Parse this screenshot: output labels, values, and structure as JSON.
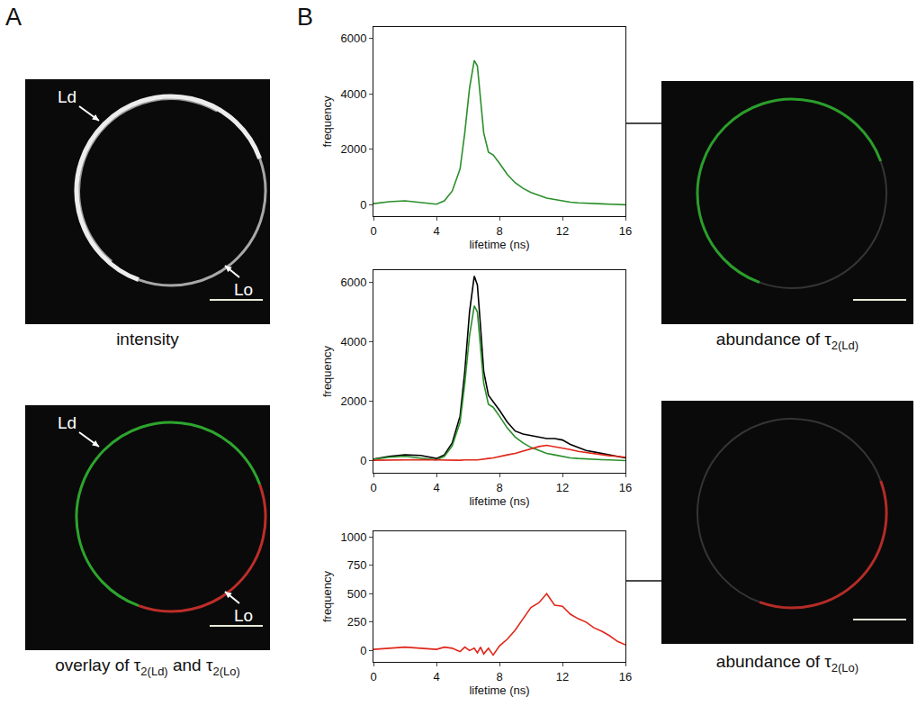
{
  "panel_letters": [
    "A",
    "B"
  ],
  "images": [
    {
      "type": "intensity",
      "labels": [
        "Ld",
        "Lo"
      ],
      "caption": [
        {
          "text": "intensity"
        }
      ]
    },
    {
      "type": "overlay",
      "labels": [
        "Ld",
        "Lo"
      ],
      "caption": [
        {
          "text": "overlay of τ"
        },
        {
          "sub": "2(Ld)"
        },
        {
          "text": " and τ"
        },
        {
          "sub": "2(Lo)"
        }
      ]
    },
    {
      "type": "Ld",
      "labels": [],
      "caption": [
        {
          "text": "abundance of τ"
        },
        {
          "sub": "2(Ld)"
        }
      ]
    },
    {
      "type": "Lo",
      "labels": [],
      "caption": [
        {
          "text": "abundance of τ"
        },
        {
          "sub": "2(Lo)"
        }
      ]
    }
  ],
  "chart_data": [
    {
      "type": "line",
      "xlabel": "lifetime (ns)",
      "ylabel": "frequency",
      "xlim": [
        0,
        16
      ],
      "xticks": [
        0,
        4,
        8,
        12,
        16
      ],
      "ylim": [
        -400,
        6400
      ],
      "yticks": [
        0,
        2000,
        4000,
        6000
      ],
      "x": [
        0,
        1,
        2,
        3,
        4,
        4.5,
        5,
        5.5,
        5.8,
        6.1,
        6.4,
        6.6,
        6.8,
        7.0,
        7.3,
        7.6,
        8,
        8.5,
        9,
        9.5,
        10,
        10.5,
        11,
        11.5,
        12,
        12.5,
        13,
        13.5,
        14,
        14.5,
        15,
        15.5,
        16
      ],
      "series": [
        {
          "color": "#2a8f2a",
          "values": [
            50,
            120,
            150,
            100,
            30,
            150,
            500,
            1300,
            2600,
            4200,
            5200,
            5000,
            3800,
            2600,
            1900,
            1800,
            1500,
            1100,
            800,
            600,
            450,
            350,
            250,
            200,
            150,
            100,
            80,
            60,
            50,
            40,
            30,
            20,
            10
          ]
        }
      ]
    },
    {
      "type": "line",
      "xlabel": "lifetime (ns)",
      "ylabel": "frequency",
      "xlim": [
        0,
        16
      ],
      "xticks": [
        0,
        4,
        8,
        12,
        16
      ],
      "ylim": [
        -400,
        6400
      ],
      "yticks": [
        0,
        2000,
        4000,
        6000
      ],
      "x": [
        0,
        1,
        2,
        3,
        4,
        4.5,
        5,
        5.5,
        5.8,
        6.1,
        6.4,
        6.6,
        6.8,
        7.0,
        7.3,
        7.6,
        8,
        8.5,
        9,
        9.5,
        10,
        10.5,
        11,
        11.5,
        12,
        12.5,
        13,
        13.5,
        14,
        14.5,
        15,
        15.5,
        16
      ],
      "series": [
        {
          "color": "#000000",
          "values": [
            60,
            150,
            200,
            180,
            80,
            200,
            600,
            1500,
            3000,
            5000,
            6200,
            5900,
            4500,
            3000,
            2200,
            2000,
            1700,
            1300,
            1000,
            900,
            850,
            800,
            750,
            750,
            700,
            550,
            450,
            350,
            300,
            250,
            200,
            150,
            100
          ]
        },
        {
          "color": "#2a8f2a",
          "values": [
            50,
            120,
            150,
            100,
            30,
            150,
            500,
            1300,
            2600,
            4200,
            5200,
            5000,
            3800,
            2600,
            1900,
            1800,
            1500,
            1100,
            800,
            600,
            450,
            350,
            250,
            200,
            150,
            100,
            80,
            60,
            50,
            40,
            30,
            20,
            10
          ]
        },
        {
          "color": "#e0261a",
          "values": [
            20,
            30,
            20,
            40,
            30,
            20,
            30,
            20,
            30,
            40,
            30,
            30,
            50,
            60,
            80,
            100,
            150,
            200,
            250,
            320,
            400,
            480,
            520,
            480,
            420,
            380,
            320,
            280,
            230,
            200,
            170,
            150,
            120
          ]
        }
      ]
    },
    {
      "type": "line",
      "xlabel": "lifetime (ns)",
      "ylabel": "frequency",
      "xlim": [
        0,
        16
      ],
      "xticks": [
        0,
        4,
        8,
        12,
        16
      ],
      "ylim": [
        -100,
        1050
      ],
      "yticks": [
        0,
        250,
        500,
        750,
        1000
      ],
      "x": [
        0,
        1,
        2,
        3,
        4,
        4.5,
        5,
        5.5,
        5.8,
        6.1,
        6.4,
        6.6,
        6.8,
        7.0,
        7.3,
        7.6,
        8,
        8.5,
        9,
        9.5,
        10,
        10.5,
        11,
        11.5,
        12,
        12.5,
        13,
        13.5,
        14,
        14.5,
        15,
        15.5,
        16
      ],
      "series": [
        {
          "color": "#e0261a",
          "values": [
            10,
            20,
            30,
            20,
            10,
            30,
            20,
            -10,
            30,
            0,
            20,
            -20,
            30,
            -30,
            20,
            -40,
            40,
            100,
            180,
            280,
            380,
            420,
            500,
            400,
            390,
            320,
            280,
            250,
            200,
            170,
            130,
            80,
            50
          ]
        }
      ]
    }
  ]
}
